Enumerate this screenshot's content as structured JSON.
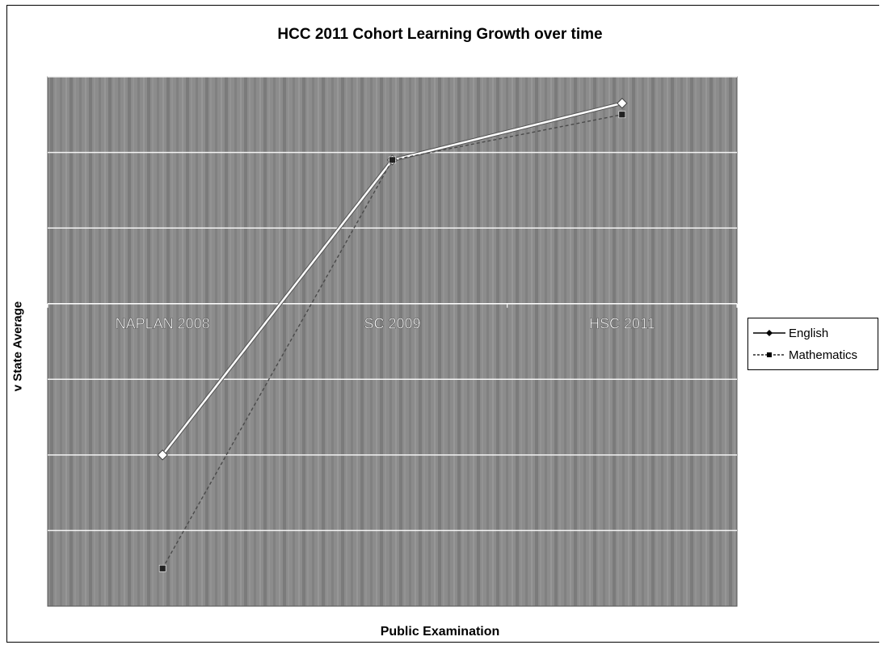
{
  "chart_data": {
    "type": "line",
    "title": "HCC 2011 Cohort Learning Growth over time",
    "xlabel": "Public Examination",
    "ylabel": "v State Average",
    "categories": [
      "NAPLAN 2008",
      "SC 2009",
      "HSC 2011"
    ],
    "series": [
      {
        "name": "English",
        "values": [
          -4,
          3.8,
          5.3
        ],
        "color": "#ffffff",
        "marker": "diamond"
      },
      {
        "name": "Mathematics",
        "values": [
          -7,
          3.8,
          5
        ],
        "color": "#4a4a4a",
        "marker": "square"
      }
    ],
    "ylim": [
      -8,
      6
    ],
    "grid": true,
    "legend_position": "right",
    "plot_background": "#8a8a8a"
  }
}
